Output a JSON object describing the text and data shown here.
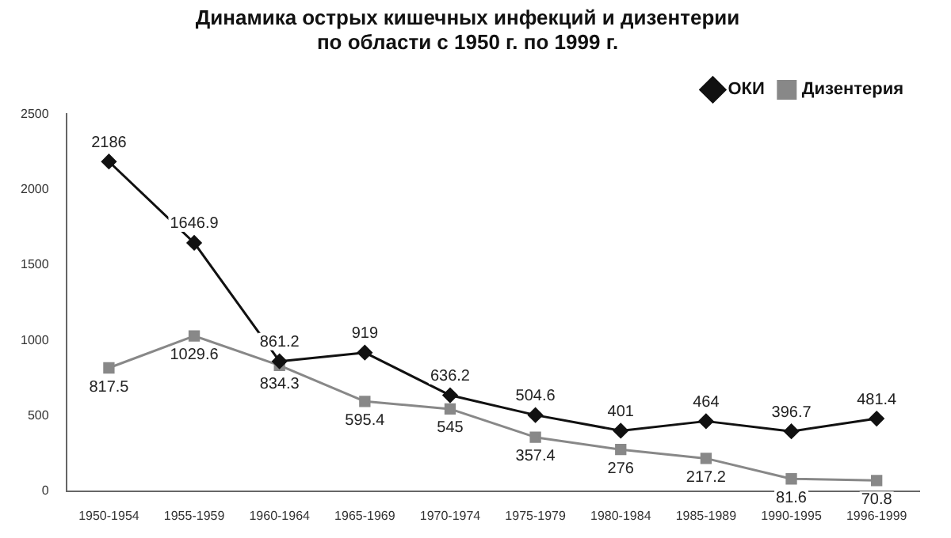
{
  "chart_data": {
    "type": "line",
    "title": "Динамика острых кишечных инфекций и дизентерии\nпо области с 1950 г. по 1999 г.",
    "categories": [
      "1950-1954",
      "1955-1959",
      "1960-1964",
      "1965-1969",
      "1970-1974",
      "1975-1979",
      "1980-1984",
      "1985-1989",
      "1990-1995",
      "1996-1999"
    ],
    "series": [
      {
        "name": "ОКИ",
        "color": "#111111",
        "marker": "diamond",
        "values": [
          2186,
          1646.9,
          861.2,
          919,
          636.2,
          504.6,
          401,
          464,
          396.7,
          481.4
        ]
      },
      {
        "name": "Дизентерия",
        "color": "#888888",
        "marker": "square",
        "values": [
          817.5,
          1029.6,
          834.3,
          595.4,
          545,
          357.4,
          276,
          217.2,
          81.6,
          70.8
        ]
      }
    ],
    "ylim": [
      0,
      2500
    ],
    "yticks": [
      0,
      500,
      1000,
      1500,
      2000,
      2500
    ],
    "grid": false,
    "legend": "top right",
    "data_labels": true
  }
}
